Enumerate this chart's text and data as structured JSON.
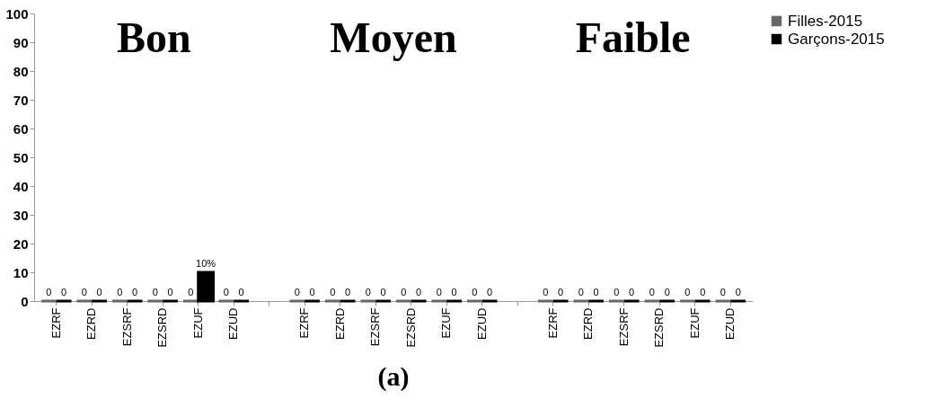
{
  "chart_data": {
    "type": "bar",
    "categories": [
      "EZRF",
      "EZRD",
      "EZSRF",
      "EZSRD",
      "EZUF",
      "EZUD",
      null,
      "EZRF",
      "EZRD",
      "EZSRF",
      "EZSRD",
      "EZUF",
      "EZUD",
      null,
      "EZRF",
      "EZRD",
      "EZSRF",
      "EZSRD",
      "EZUF",
      "EZUD"
    ],
    "series": [
      {
        "name": "Filles-2015",
        "color": "#666666",
        "values": [
          0,
          0,
          0,
          0,
          0,
          0,
          null,
          0,
          0,
          0,
          0,
          0,
          0,
          null,
          0,
          0,
          0,
          0,
          0,
          0
        ],
        "value_labels": [
          "0",
          "0",
          "0",
          "0",
          "0",
          "0",
          null,
          "0",
          "0",
          "0",
          "0",
          "0",
          "0",
          null,
          "0",
          "0",
          "0",
          "0",
          "0",
          "0"
        ]
      },
      {
        "name": "Garçons-2015",
        "color": "#000000",
        "values": [
          0,
          0,
          0,
          0,
          10,
          0,
          null,
          0,
          0,
          0,
          0,
          0,
          0,
          null,
          0,
          0,
          0,
          0,
          0,
          0
        ],
        "value_labels": [
          "0",
          "0",
          "0",
          "0",
          "10%",
          "0",
          null,
          "0",
          "0",
          "0",
          "0",
          "0",
          "0",
          null,
          "0",
          "0",
          "0",
          "0",
          "0",
          "0"
        ]
      }
    ],
    "ylim": [
      0,
      100
    ],
    "yticks": [
      0,
      10,
      20,
      30,
      40,
      50,
      60,
      70,
      80,
      90,
      100
    ],
    "grid": false,
    "legend": "right",
    "annotations": [
      "Bon",
      "Moyen",
      "Faible",
      "(a)"
    ]
  }
}
